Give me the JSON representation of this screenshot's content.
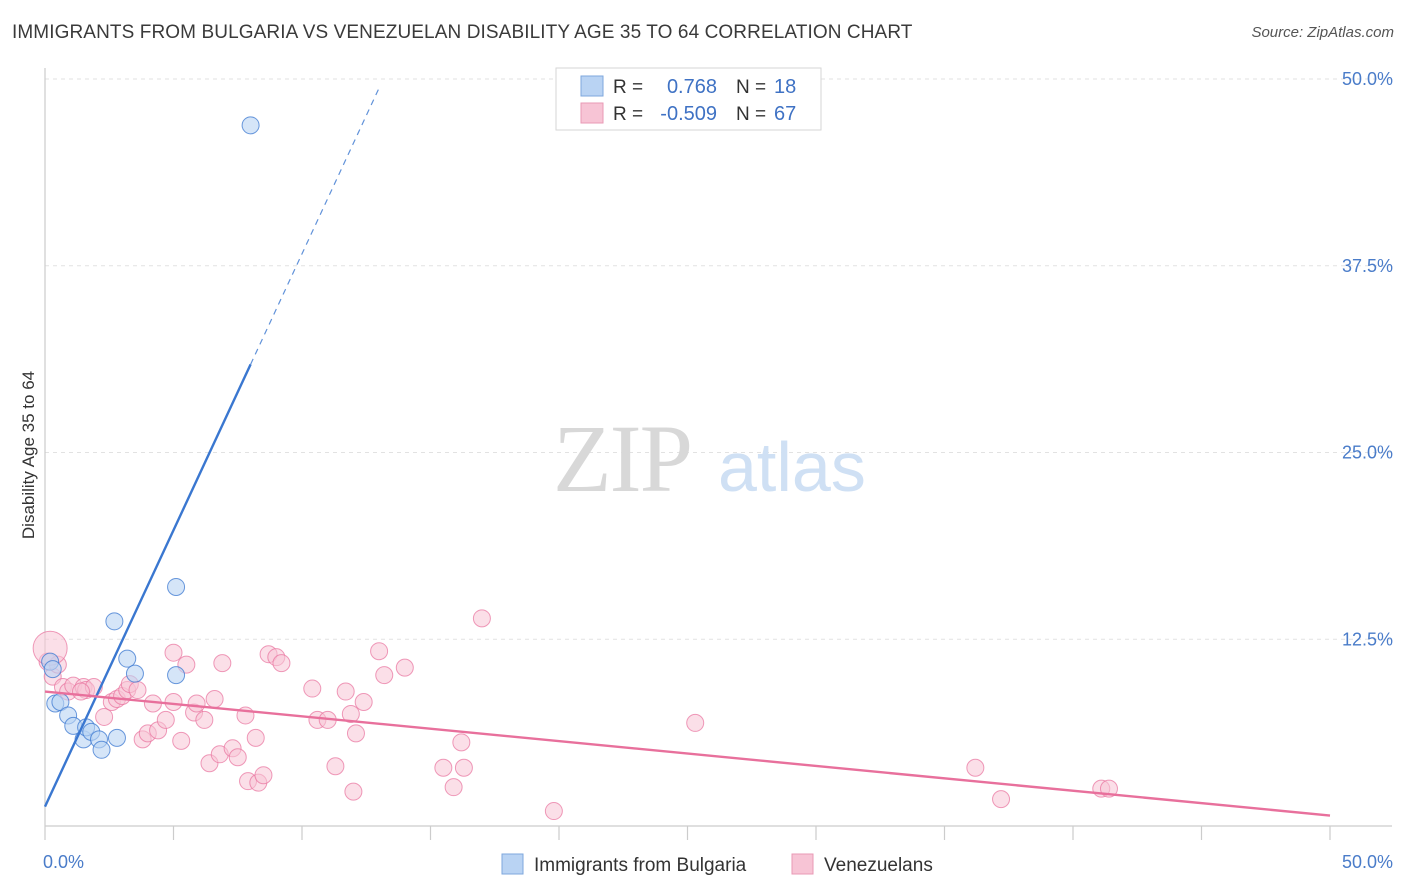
{
  "title": "IMMIGRANTS FROM BULGARIA VS VENEZUELAN DISABILITY AGE 35 TO 64 CORRELATION CHART",
  "source": "Source: ZipAtlas.com",
  "watermark": {
    "zip": "ZIP",
    "atlas": "atlas"
  },
  "colors": {
    "blue": "#3a77d0",
    "blue_fill": "#b9d3f3",
    "pink": "#e8709c",
    "pink_fill": "#f7c4d5",
    "tick": "#4a7cc9",
    "grid": "#e2e2e2"
  },
  "legend": {
    "rows": [
      {
        "r_label": "R =",
        "r_value": "0.768",
        "n_label": "N =",
        "n_value": "18",
        "series": "bulgaria"
      },
      {
        "r_label": "R =",
        "r_value": "-0.509",
        "n_label": "N =",
        "n_value": "67",
        "series": "venezuelans"
      }
    ]
  },
  "bottom_legend": [
    "Immigrants from Bulgaria",
    "Venezuelans"
  ],
  "chart_data": {
    "type": "scatter",
    "title": "IMMIGRANTS FROM BULGARIA VS VENEZUELAN DISABILITY AGE 35 TO 64 CORRELATION CHART",
    "xlabel": "",
    "ylabel": "Disability Age 35 to 64",
    "xlim": [
      0,
      50
    ],
    "ylim": [
      0,
      50
    ],
    "x_tick_labels": [
      "0.0%",
      "50.0%"
    ],
    "y_ticks": [
      {
        "value": 12.5,
        "label": "12.5%"
      },
      {
        "value": 25.0,
        "label": "25.0%"
      },
      {
        "value": 37.5,
        "label": "37.5%"
      },
      {
        "value": 50.0,
        "label": "50.0%"
      }
    ],
    "series": [
      {
        "name": "Immigrants from Bulgaria",
        "key": "bulgaria",
        "points": [
          [
            0.2,
            11.0
          ],
          [
            0.3,
            10.5
          ],
          [
            0.4,
            8.2
          ],
          [
            0.6,
            8.3
          ],
          [
            0.9,
            7.4
          ],
          [
            1.1,
            6.7
          ],
          [
            1.5,
            5.8
          ],
          [
            1.6,
            6.6
          ],
          [
            1.8,
            6.3
          ],
          [
            2.1,
            5.8
          ],
          [
            2.2,
            5.1
          ],
          [
            2.8,
            5.9
          ],
          [
            2.7,
            13.7
          ],
          [
            3.2,
            11.2
          ],
          [
            3.5,
            10.2
          ],
          [
            5.1,
            10.1
          ],
          [
            5.1,
            16.0
          ],
          [
            8.0,
            46.9
          ]
        ],
        "trend": {
          "x0": 0.0,
          "y0": 1.3,
          "x1": 8.0,
          "y1": 30.9,
          "dash_to_x": 13.0,
          "dash_to_y": 49.4
        }
      },
      {
        "name": "Venezuelans",
        "key": "venezuelans",
        "points": [
          [
            0.1,
            11.0
          ],
          [
            0.3,
            10.0
          ],
          [
            0.5,
            10.8
          ],
          [
            0.7,
            9.3
          ],
          [
            0.9,
            9.0
          ],
          [
            1.1,
            9.4
          ],
          [
            1.5,
            9.3
          ],
          [
            1.6,
            9.1
          ],
          [
            1.9,
            9.3
          ],
          [
            2.3,
            7.3
          ],
          [
            2.6,
            8.3
          ],
          [
            2.8,
            8.5
          ],
          [
            3.0,
            8.7
          ],
          [
            3.2,
            9.1
          ],
          [
            3.3,
            9.5
          ],
          [
            3.6,
            9.1
          ],
          [
            3.8,
            5.8
          ],
          [
            4.0,
            6.2
          ],
          [
            4.2,
            8.2
          ],
          [
            4.4,
            6.4
          ],
          [
            4.7,
            7.1
          ],
          [
            5.0,
            11.6
          ],
          [
            5.0,
            8.3
          ],
          [
            5.3,
            5.7
          ],
          [
            5.5,
            10.8
          ],
          [
            5.8,
            7.6
          ],
          [
            5.9,
            8.2
          ],
          [
            6.2,
            7.1
          ],
          [
            6.4,
            4.2
          ],
          [
            6.6,
            8.5
          ],
          [
            6.8,
            4.8
          ],
          [
            6.9,
            10.9
          ],
          [
            7.3,
            5.2
          ],
          [
            7.5,
            4.6
          ],
          [
            7.8,
            7.4
          ],
          [
            7.9,
            3.0
          ],
          [
            8.2,
            5.9
          ],
          [
            8.3,
            2.9
          ],
          [
            8.5,
            3.4
          ],
          [
            8.7,
            11.5
          ],
          [
            9.0,
            11.3
          ],
          [
            9.2,
            10.9
          ],
          [
            10.4,
            9.2
          ],
          [
            10.6,
            7.1
          ],
          [
            11.0,
            7.1
          ],
          [
            11.3,
            4.0
          ],
          [
            11.7,
            9.0
          ],
          [
            11.9,
            7.5
          ],
          [
            12.1,
            6.2
          ],
          [
            12.4,
            8.3
          ],
          [
            12.0,
            2.3
          ],
          [
            13.0,
            11.7
          ],
          [
            13.2,
            10.1
          ],
          [
            14.0,
            10.6
          ],
          [
            15.5,
            3.9
          ],
          [
            15.9,
            2.6
          ],
          [
            16.2,
            5.6
          ],
          [
            16.3,
            3.9
          ],
          [
            17.0,
            13.9
          ],
          [
            19.8,
            1.0
          ],
          [
            25.3,
            6.9
          ],
          [
            36.2,
            3.9
          ],
          [
            37.2,
            1.8
          ],
          [
            41.1,
            2.5
          ],
          [
            41.4,
            2.5
          ],
          [
            0.2,
            11.9
          ],
          [
            1.4,
            9.0
          ]
        ],
        "trend": {
          "x0": 0.0,
          "y0": 9.0,
          "x1": 50.0,
          "y1": 0.7
        }
      }
    ],
    "legend": [
      {
        "series": "Immigrants from Bulgaria",
        "R": 0.768,
        "N": 18
      },
      {
        "series": "Venezuelans",
        "R": -0.509,
        "N": 67
      }
    ]
  }
}
